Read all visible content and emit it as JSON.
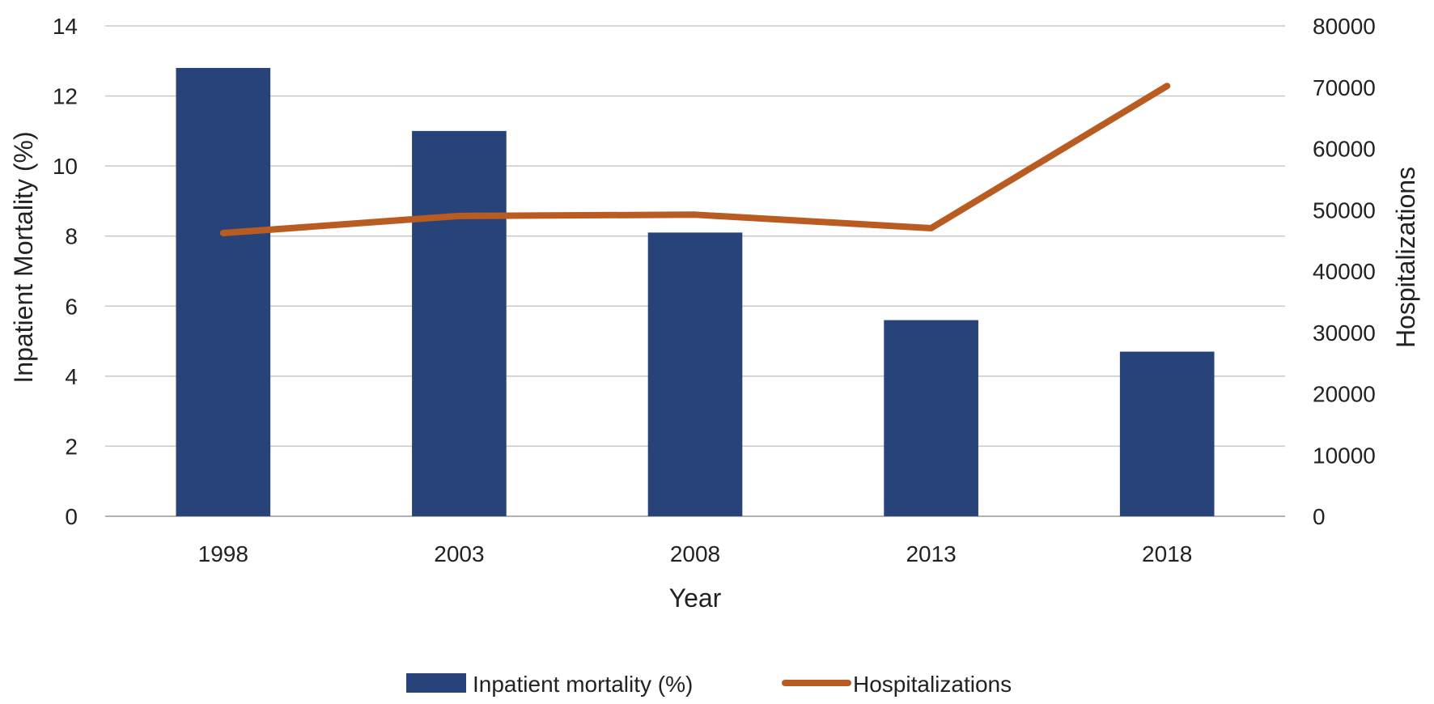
{
  "chart_data": {
    "type": "bar",
    "title": "",
    "xlabel": "Year",
    "ylabel": "Inpatient Mortality (%)",
    "y2label": "Hospitalizations",
    "categories": [
      "1998",
      "2003",
      "2008",
      "2013",
      "2018"
    ],
    "ylim": [
      0,
      14
    ],
    "yticks": [
      0,
      2,
      4,
      6,
      8,
      10,
      12,
      14
    ],
    "y2lim": [
      0,
      80000
    ],
    "y2ticks": [
      0,
      10000,
      20000,
      30000,
      40000,
      50000,
      60000,
      70000,
      80000
    ],
    "grid": true,
    "legend_position": "bottom",
    "series": [
      {
        "name": "Inpatient mortality (%)",
        "type": "bar",
        "axis": "left",
        "color": "#27437A",
        "values": [
          12.8,
          11.0,
          8.1,
          5.6,
          4.7
        ]
      },
      {
        "name": "Hospitalizations",
        "type": "line",
        "axis": "right",
        "color": "#B85C22",
        "values": [
          46200,
          49000,
          49200,
          47000,
          70200
        ]
      }
    ]
  }
}
